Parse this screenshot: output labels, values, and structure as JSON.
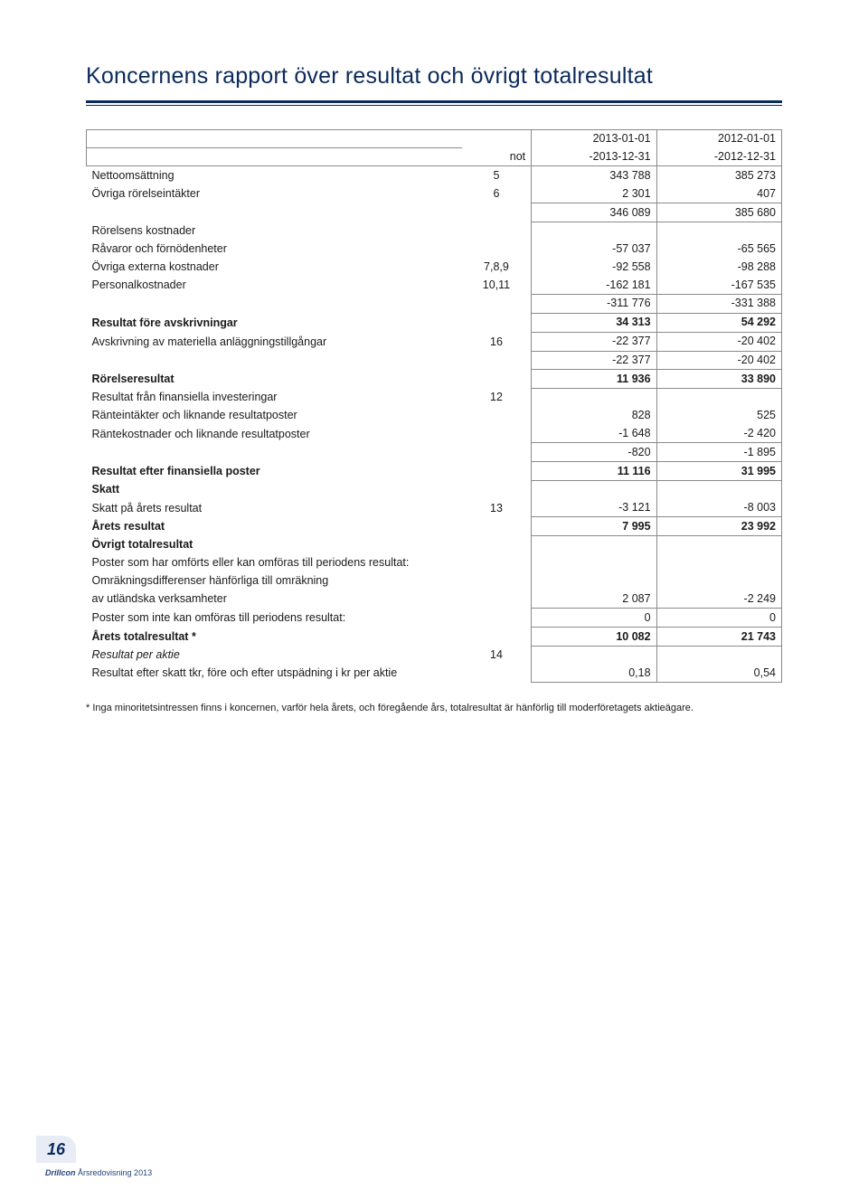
{
  "title": "Koncernens rapport över resultat och övrigt totalresultat",
  "header": {
    "note_label": "not",
    "col1_line1": "2013-01-01",
    "col1_line2": "-2013-12-31",
    "col2_line1": "2012-01-01",
    "col2_line2": "-2012-12-31"
  },
  "rows": {
    "netto": {
      "label": "Nettoomsättning",
      "note": "5",
      "c1": "343 788",
      "c2": "385 273"
    },
    "ovriga_ror": {
      "label": "Övriga rörelseintäkter",
      "note": "6",
      "c1": "2 301",
      "c2": "407"
    },
    "sum1": {
      "c1": "346 089",
      "c2": "385 680"
    },
    "rorelsens_kost": {
      "label": "Rörelsens kostnader"
    },
    "ravaror": {
      "label": "Råvaror och förnödenheter",
      "c1": "-57 037",
      "c2": "-65 565"
    },
    "ovriga_ext": {
      "label": "Övriga externa kostnader",
      "note": "7,8,9",
      "c1": "-92 558",
      "c2": "-98 288"
    },
    "personal": {
      "label": "Personalkostnader",
      "note": "10,11",
      "c1": "-162 181",
      "c2": "-167 535"
    },
    "sum2": {
      "c1": "-311 776",
      "c2": "-331 388"
    },
    "res_fore_avskr": {
      "label": "Resultat före avskrivningar",
      "c1": "34 313",
      "c2": "54 292"
    },
    "avskr": {
      "label": "Avskrivning av materiella anläggningstillgångar",
      "note": "16",
      "c1": "-22 377",
      "c2": "-20 402"
    },
    "sum3": {
      "c1": "-22 377",
      "c2": "-20 402"
    },
    "rorelseresultat": {
      "label": "Rörelseresultat",
      "c1": "11 936",
      "c2": "33 890"
    },
    "res_fin_inv": {
      "label": "Resultat från finansiella investeringar",
      "note": "12"
    },
    "ranteint": {
      "label": "Ränteintäkter och liknande resultatposter",
      "c1": "828",
      "c2": "525"
    },
    "rantekost": {
      "label": "Räntekostnader och liknande resultatposter",
      "c1": "-1 648",
      "c2": "-2 420"
    },
    "sum4": {
      "c1": "-820",
      "c2": "-1 895"
    },
    "res_efter_fin": {
      "label": "Resultat efter finansiella poster",
      "c1": "11 116",
      "c2": "31 995"
    },
    "skatt_h": {
      "label": "Skatt"
    },
    "skatt_arets": {
      "label": "Skatt på årets resultat",
      "note": "13",
      "c1": "-3 121",
      "c2": "-8 003"
    },
    "arets_resultat": {
      "label": "Årets resultat",
      "c1": "7 995",
      "c2": "23 992"
    },
    "ovrigt_tot_h": {
      "label": "Övrigt totalresultat"
    },
    "poster_har": {
      "label": "Poster som har omförts eller kan omföras till periodens resultat:"
    },
    "omrak1": {
      "label": "Omräkningsdifferenser hänförliga till omräkning"
    },
    "omrak2": {
      "label": "av utländska verksamheter",
      "c1": "2 087",
      "c2": "-2 249"
    },
    "poster_inte": {
      "label": "Poster som inte kan omföras till periodens resultat:",
      "c1": "0",
      "c2": "0"
    },
    "arets_total": {
      "label": "Årets totalresultat *",
      "c1": "10 082",
      "c2": "21 743"
    },
    "res_per_aktie": {
      "label": "Resultat per aktie",
      "note": "14"
    },
    "res_efter_skatt": {
      "label": "Resultat efter skatt tkr, före och efter utspädning i kr per aktie",
      "c1": "0,18",
      "c2": "0,54"
    }
  },
  "footnote": "* Inga minoritetsintressen finns i koncernen, varför hela årets, och föregående års, totalresultat är hänförlig till moderföretagets aktieägare.",
  "footer": {
    "page": "16",
    "brand": "Drillcon",
    "pub": "Årsredovisning 2013"
  }
}
